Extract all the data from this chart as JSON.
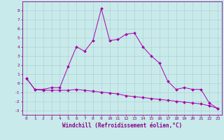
{
  "xlabel": "Windchill (Refroidissement éolien,°C)",
  "ylabel": "",
  "bg_color": "#c8eaea",
  "line_color": "#aa00aa",
  "grid_color": "#aacccc",
  "hours": [
    0,
    1,
    2,
    3,
    4,
    5,
    6,
    7,
    8,
    9,
    10,
    11,
    12,
    13,
    14,
    15,
    16,
    17,
    18,
    19,
    20,
    21,
    22,
    23
  ],
  "temp": [
    0.5,
    -0.7,
    -0.7,
    -0.5,
    -0.5,
    1.8,
    4.0,
    3.5,
    4.7,
    8.2,
    4.7,
    4.8,
    5.4,
    5.5,
    4.0,
    3.0,
    2.2,
    0.2,
    -0.7,
    -0.5,
    -0.7,
    -0.7,
    -2.2,
    -2.8
  ],
  "windchill": [
    0.5,
    -0.7,
    -0.8,
    -0.8,
    -0.8,
    -0.8,
    -0.7,
    -0.8,
    -0.9,
    -1.0,
    -1.1,
    -1.2,
    -1.4,
    -1.5,
    -1.6,
    -1.7,
    -1.8,
    -1.9,
    -2.0,
    -2.1,
    -2.2,
    -2.3,
    -2.5,
    -2.8
  ],
  "ylim": [
    -3.5,
    9.0
  ],
  "xlim": [
    -0.5,
    23.5
  ],
  "yticks": [
    -3,
    -2,
    -1,
    0,
    1,
    2,
    3,
    4,
    5,
    6,
    7,
    8
  ],
  "xticks": [
    0,
    1,
    2,
    3,
    4,
    5,
    6,
    7,
    8,
    9,
    10,
    11,
    12,
    13,
    14,
    15,
    16,
    17,
    18,
    19,
    20,
    21,
    22,
    23
  ],
  "fontsize_tick": 4.5,
  "fontsize_label": 5.5,
  "text_color": "#880088"
}
